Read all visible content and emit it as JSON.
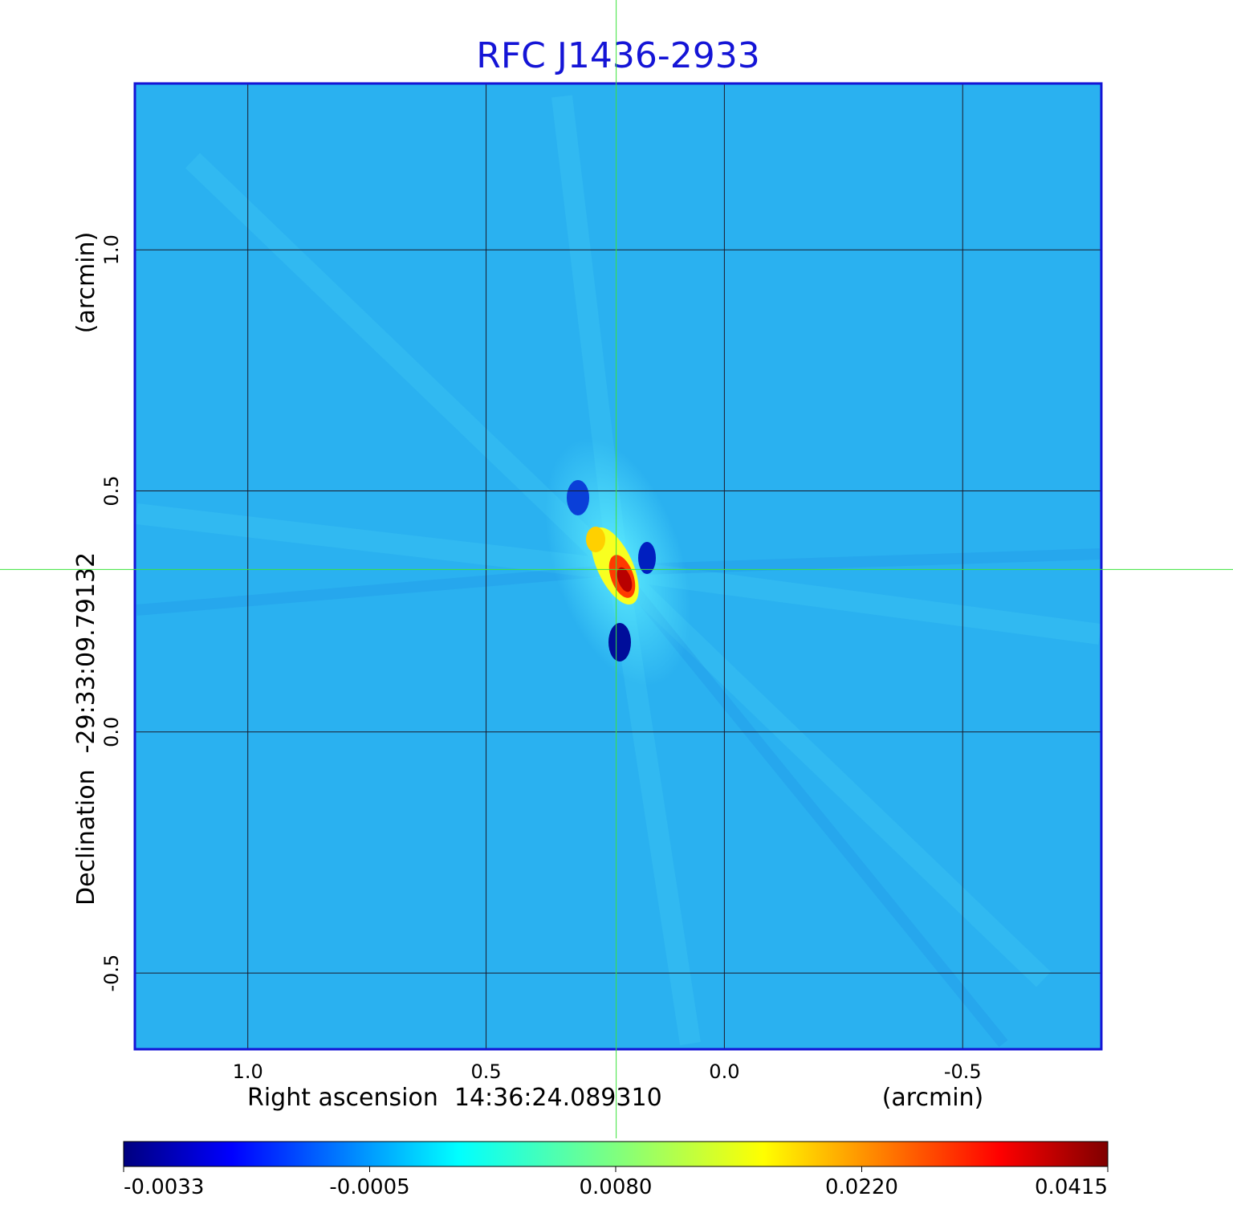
{
  "title": "RFC J1436-2933",
  "x_axis": {
    "label": "Right ascension",
    "center": "14:36:24.089310",
    "unit": "(arcmin)",
    "ticks": [
      "1.0",
      "0.5",
      "0.0",
      "-0.5"
    ],
    "tick_values": [
      1.0,
      0.5,
      0.0,
      -0.5
    ],
    "range": [
      1.237,
      -0.791
    ]
  },
  "y_axis": {
    "label": "Declination",
    "center": "-29:33:09.79132",
    "unit": "(arcmin)",
    "ticks": [
      "1.0",
      "0.5",
      "0.0",
      "-0.5"
    ],
    "tick_values": [
      1.0,
      0.5,
      0.0,
      -0.5
    ],
    "range": [
      -0.658,
      1.345
    ]
  },
  "crosshair": {
    "ra_offset": 0.227,
    "dec_offset": 0.337,
    "color": "#3be23b"
  },
  "grid": true,
  "colorbar": {
    "colormap": "jet",
    "ticks": [
      "-0.0033",
      "-0.0005",
      "0.0080",
      "0.0220",
      "0.0415"
    ],
    "tick_values": [
      -0.0033,
      -0.0005,
      0.008,
      0.022,
      0.0415
    ]
  },
  "colors": {
    "title": "#1414d6",
    "frame": "#1414d6",
    "background_map": "#2ab1f0"
  }
}
